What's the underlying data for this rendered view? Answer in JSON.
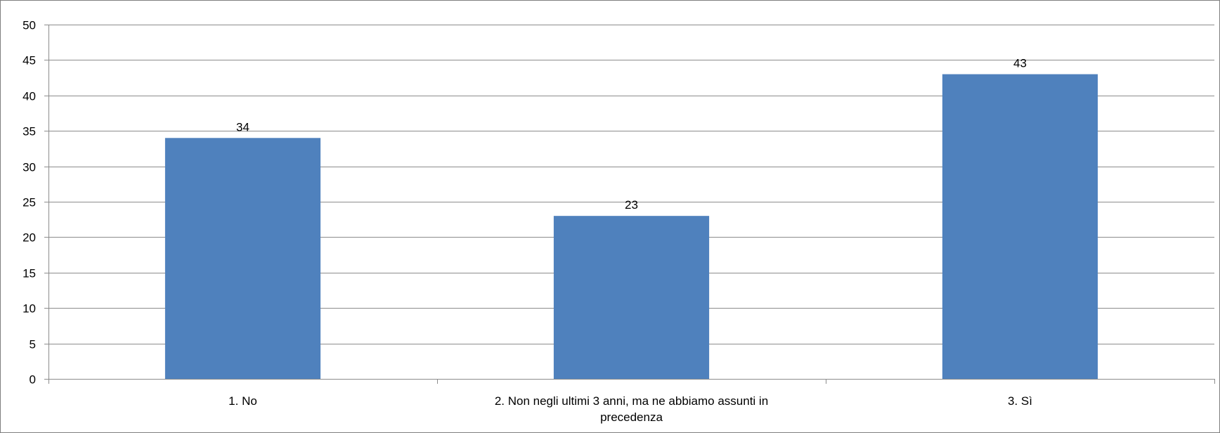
{
  "chart_data": {
    "type": "bar",
    "categories": [
      "1. No",
      "2. Non negli ultimi 3 anni, ma ne abbiamo assunti in precedenza",
      "3. Sì"
    ],
    "category_label_lines": [
      [
        "1. No"
      ],
      [
        "2. Non negli ultimi 3 anni, ma ne abbiamo assunti in",
        "precedenza"
      ],
      [
        "3. Sì"
      ]
    ],
    "values": [
      34,
      23,
      43
    ],
    "data_labels": [
      "34",
      "23",
      "43"
    ],
    "ylim": [
      0,
      50
    ],
    "yticks": [
      0,
      5,
      10,
      15,
      20,
      25,
      30,
      35,
      40,
      45,
      50
    ],
    "ytick_labels": [
      "0",
      "5",
      "10",
      "15",
      "20",
      "25",
      "30",
      "35",
      "40",
      "45",
      "50"
    ],
    "title": "",
    "xlabel": "",
    "ylabel": "",
    "grid": true,
    "legend": "none",
    "colors": {
      "bar": "#4F81BD",
      "grid": "#8C8C8C",
      "axis": "#8C8C8C",
      "border": "#7F7F7F",
      "text": "#000000"
    }
  }
}
